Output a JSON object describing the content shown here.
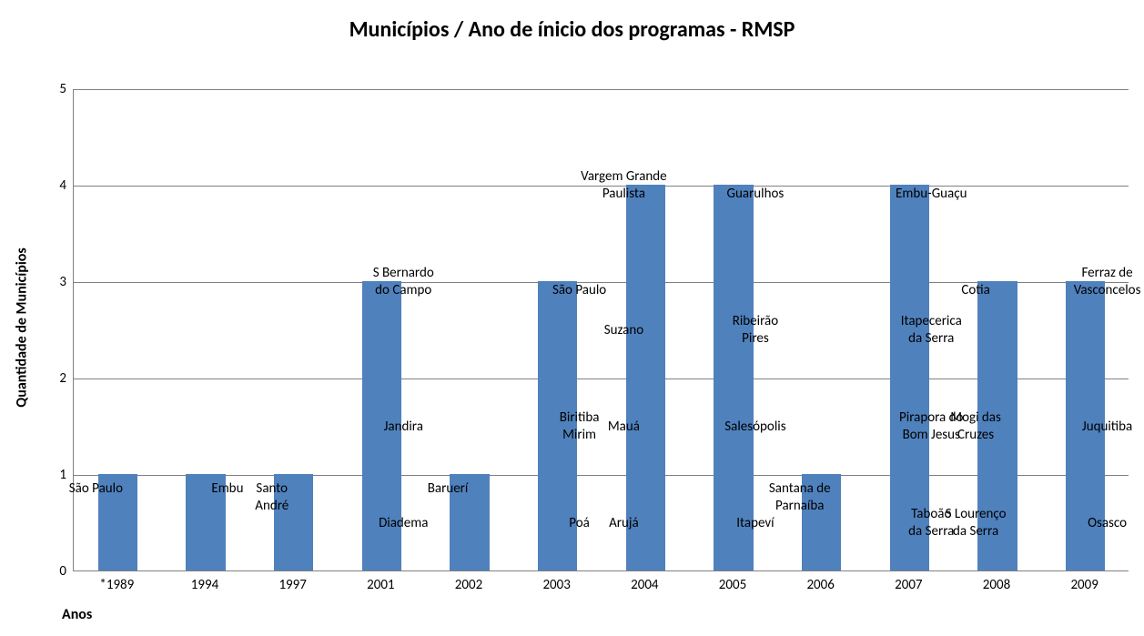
{
  "chart": {
    "type": "bar",
    "title": "Municípios / Ano de ínicio dos programas - RMSP",
    "title_fontsize": 24,
    "title_color": "#000000",
    "xaxis_title": "Anos",
    "yaxis_title": "Quantidade de Municípios",
    "axis_title_fontsize": 16,
    "background_color": "#ffffff",
    "grid_color": "#808080",
    "ylim": [
      0,
      5
    ],
    "ytick_step": 1,
    "ytick_labels": [
      "0",
      "1",
      "2",
      "3",
      "4",
      "5"
    ],
    "tick_fontsize": 15,
    "bar_color": "#4f81bd",
    "bar_width_ratio": 0.45,
    "label_fontsize": 15,
    "label_color": "#000000",
    "categories": [
      "*1989",
      "1994",
      "1997",
      "2001",
      "2002",
      "2003",
      "2004",
      "2005",
      "2006",
      "2007",
      "2008",
      "2009"
    ],
    "values": [
      1,
      1,
      1,
      3,
      1,
      3,
      4,
      4,
      1,
      4,
      3,
      3
    ],
    "bar_labels": [
      [
        "São Paulo"
      ],
      [
        "Embu"
      ],
      [
        "Santo\nAndré"
      ],
      [
        "S Bernardo\ndo Campo",
        "Jandira",
        "Diadema"
      ],
      [
        "Baruerí"
      ],
      [
        "São Paulo",
        "Biritiba\nMirim",
        "Poá"
      ],
      [
        "Vargem Grande\nPaulista",
        "Suzano",
        "Mauá",
        "Arujá"
      ],
      [
        "Guarulhos",
        "Ribeirão\nPires",
        "Salesópolis",
        "Itapeví"
      ],
      [
        "Santana de\nParnaíba"
      ],
      [
        "Embu-Guaçu",
        "Itapecerica\nda Serra",
        "Pirapora do\nBom Jesus",
        "Taboão\nda Serra"
      ],
      [
        "Cotia",
        "Mogi  das\nCruzes",
        "S Lourenço\nda Serra"
      ],
      [
        "Ferraz de\nVasconcelos",
        "Juquitiba",
        "Osasco"
      ]
    ]
  }
}
